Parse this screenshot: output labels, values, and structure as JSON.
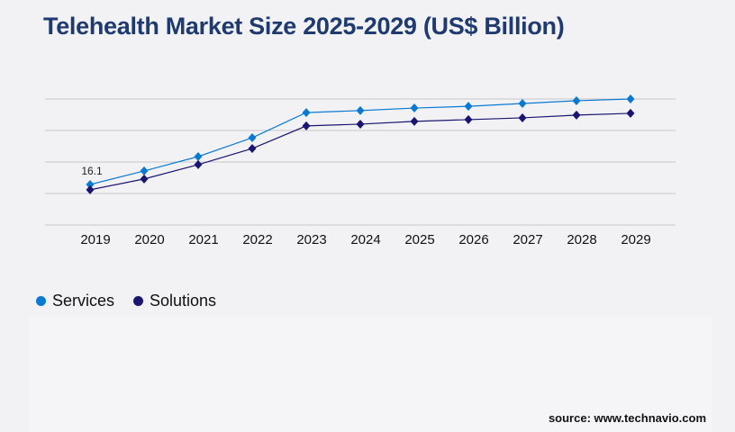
{
  "title": "Telehealth Market Size 2025-2029 (US$ Billion)",
  "source": "source: www.technavio.com",
  "chart_data": {
    "type": "line",
    "title": "Telehealth Market Size 2025-2029 (US$ Billion)",
    "categories": [
      "2019",
      "2020",
      "2021",
      "2022",
      "2023",
      "2024",
      "2025",
      "2026",
      "2027",
      "2028",
      "2029"
    ],
    "series": [
      {
        "name": "Services",
        "color": "#0a7ad1",
        "values": [
          16.1,
          21.5,
          27.2,
          34.7,
          44.7,
          45.5,
          46.5,
          47.2,
          48.3,
          49.4,
          50.1
        ]
      },
      {
        "name": "Solutions",
        "color": "#1a1670",
        "values": [
          14.0,
          18.3,
          24.0,
          30.4,
          39.4,
          40.1,
          41.2,
          41.9,
          42.6,
          43.7,
          44.4
        ]
      }
    ],
    "annotations": [
      {
        "category": "2019",
        "series": "Services",
        "label": "16.1"
      }
    ],
    "ylim": [
      0,
      50.1
    ],
    "grid": true,
    "y_tick_labels_shown": false,
    "legend": "bottom-left",
    "marker": "diamond"
  }
}
